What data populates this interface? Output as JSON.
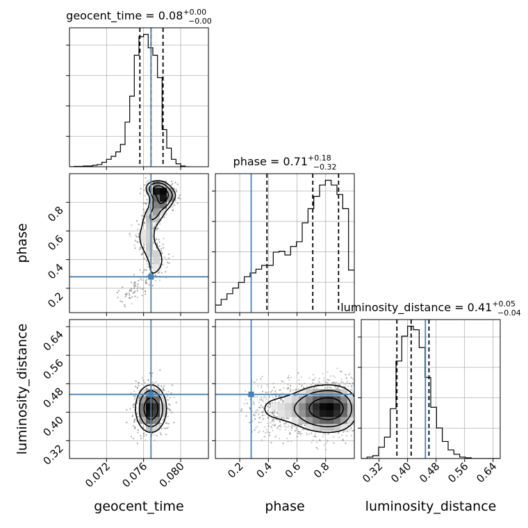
{
  "chart_data": {
    "type": "corner",
    "parameters": [
      "geocent_time",
      "phase",
      "luminosity_distance"
    ],
    "truth": {
      "geocent_time": 0.0768,
      "phase": 0.28,
      "luminosity_distance": 0.45
    },
    "ranges": {
      "geocent_time": [
        0.068,
        0.083
      ],
      "phase": [
        0.03,
        1.0
      ],
      "luminosity_distance": [
        0.27,
        0.66
      ]
    },
    "ticks": {
      "geocent_time": {
        "values": [
          0.072,
          0.076,
          0.08
        ],
        "labels": [
          "0.072",
          "0.076",
          "0.080"
        ]
      },
      "phase": {
        "values": [
          0.2,
          0.4,
          0.6,
          0.8
        ],
        "labels": [
          "0.2",
          "0.4",
          "0.6",
          "0.8"
        ]
      },
      "luminosity_distance": {
        "values": [
          0.32,
          0.4,
          0.48,
          0.56,
          0.64
        ],
        "labels": [
          "0.32",
          "0.40",
          "0.48",
          "0.56",
          "0.64"
        ]
      }
    },
    "grid": true,
    "axis_labels": {
      "x": [
        "geocent_time",
        "phase",
        "luminosity_distance"
      ],
      "y": [
        "phase",
        "luminosity_distance"
      ]
    },
    "titles": [
      {
        "param": "geocent_time",
        "text": "geocent_time = 0.08",
        "sup": "+0.00",
        "sub": "−0.00"
      },
      {
        "param": "phase",
        "text": "phase = 0.71",
        "sup": "+0.18",
        "sub": "−0.32"
      },
      {
        "param": "luminosity_distance",
        "text": "luminosity_distance = 0.41",
        "sup": "+0.05",
        "sub": "−0.04"
      }
    ],
    "quantiles": {
      "geocent_time": [
        0.0756,
        0.0768,
        0.0781
      ],
      "phase": [
        0.39,
        0.71,
        0.89
      ],
      "luminosity_distance": [
        0.37,
        0.41,
        0.46
      ]
    },
    "histograms": {
      "geocent_time": {
        "edges": [
          0.068,
          0.0685,
          0.069,
          0.0695,
          0.07,
          0.0705,
          0.071,
          0.0715,
          0.072,
          0.0725,
          0.073,
          0.0735,
          0.074,
          0.0745,
          0.075,
          0.0755,
          0.076,
          0.0765,
          0.077,
          0.0775,
          0.078,
          0.0785,
          0.079,
          0.0795,
          0.08,
          0.0805,
          0.081
        ],
        "counts": [
          0,
          0.5,
          0.5,
          1,
          1,
          2,
          3,
          6,
          10,
          14,
          20,
          30,
          60,
          95,
          150,
          175,
          178,
          160,
          150,
          120,
          50,
          25,
          10,
          4,
          1,
          0
        ]
      },
      "phase": {
        "edges": [
          0.03,
          0.0704,
          0.1108,
          0.1513,
          0.1917,
          0.2321,
          0.2725,
          0.3129,
          0.3533,
          0.3938,
          0.4342,
          0.4746,
          0.515,
          0.5554,
          0.5958,
          0.6363,
          0.6767,
          0.7171,
          0.7575,
          0.7979,
          0.8383,
          0.8788,
          0.9192,
          0.9596,
          1.0
        ],
        "counts": [
          8,
          14,
          20,
          26,
          32,
          38,
          42,
          46,
          50,
          50,
          64,
          65,
          61,
          70,
          75,
          95,
          110,
          123,
          135,
          140,
          135,
          125,
          110,
          45
        ]
      },
      "luminosity_distance": {
        "edges": [
          0.27,
          0.2863,
          0.3025,
          0.3188,
          0.335,
          0.3513,
          0.3675,
          0.3838,
          0.4,
          0.4163,
          0.4325,
          0.4488,
          0.465,
          0.4813,
          0.4975,
          0.5138,
          0.53,
          0.5463,
          0.5625,
          0.5788,
          0.595,
          0.6113,
          0.6275,
          0.6438,
          0.66
        ],
        "counts": [
          0,
          2,
          4,
          16,
          30,
          70,
          137,
          172,
          186,
          181,
          156,
          114,
          72,
          43,
          24,
          12,
          6,
          2,
          1,
          0,
          0,
          0,
          0,
          0
        ]
      }
    },
    "densities": {
      "geocent_time|phase": {
        "ridge": [
          [
            0.0775,
            0.9
          ],
          [
            0.0782,
            0.85
          ],
          [
            0.0778,
            0.79
          ],
          [
            0.0772,
            0.72
          ],
          [
            0.0767,
            0.66
          ],
          [
            0.0764,
            0.6
          ],
          [
            0.0763,
            0.55
          ],
          [
            0.0765,
            0.5
          ],
          [
            0.077,
            0.45
          ],
          [
            0.0773,
            0.4
          ],
          [
            0.0773,
            0.35
          ],
          [
            0.077,
            0.3
          ],
          [
            0.0762,
            0.25
          ],
          [
            0.0755,
            0.21
          ],
          [
            0.0745,
            0.17
          ],
          [
            0.0735,
            0.13
          ]
        ],
        "sigma": [
          0.0008,
          0.034
        ],
        "weights": [
          1.0,
          0.95,
          0.75,
          0.55,
          0.4,
          0.32,
          0.3,
          0.32,
          0.35,
          0.3,
          0.25,
          0.2,
          0.18,
          0.16,
          0.15,
          0.12
        ]
      },
      "geocent_time|luminosity_distance": {
        "ridge": [
          [
            0.0768,
            0.41
          ]
        ],
        "sigma": [
          0.001,
          0.04
        ],
        "weights": [
          1.0
        ]
      },
      "phase|luminosity_distance": {
        "ridge": [
          [
            0.35,
            0.41
          ],
          [
            0.45,
            0.41
          ],
          [
            0.55,
            0.41
          ],
          [
            0.65,
            0.41
          ],
          [
            0.72,
            0.41
          ],
          [
            0.8,
            0.41
          ],
          [
            0.88,
            0.41
          ],
          [
            0.96,
            0.41
          ]
        ],
        "sigma": [
          0.07,
          0.04
        ],
        "weights": [
          0.3,
          0.35,
          0.42,
          0.55,
          0.75,
          1.0,
          0.95,
          0.55
        ]
      }
    },
    "colors": {
      "truth": "#4682b4",
      "hist": "#000000",
      "grid": "#b0b0b0"
    }
  }
}
